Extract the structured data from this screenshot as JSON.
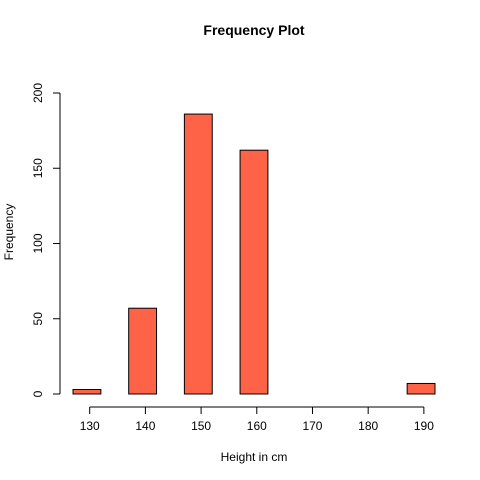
{
  "chart_data": {
    "type": "bar",
    "title": "Frequency Plot",
    "xlabel": "Height in cm",
    "ylabel": "Frequency",
    "bar_color": "#FF6347",
    "xlim": [
      127,
      192
    ],
    "ylim": [
      0,
      200
    ],
    "x_ticks": [
      130,
      140,
      150,
      160,
      170,
      180,
      190
    ],
    "y_ticks": [
      0,
      50,
      100,
      150,
      200
    ],
    "bins": [
      {
        "start": 127,
        "end": 132,
        "value": 3
      },
      {
        "start": 137,
        "end": 142,
        "value": 57
      },
      {
        "start": 147,
        "end": 152,
        "value": 186
      },
      {
        "start": 157,
        "end": 162,
        "value": 162
      },
      {
        "start": 187,
        "end": 192,
        "value": 7
      }
    ],
    "grid": false,
    "legend": "none"
  }
}
